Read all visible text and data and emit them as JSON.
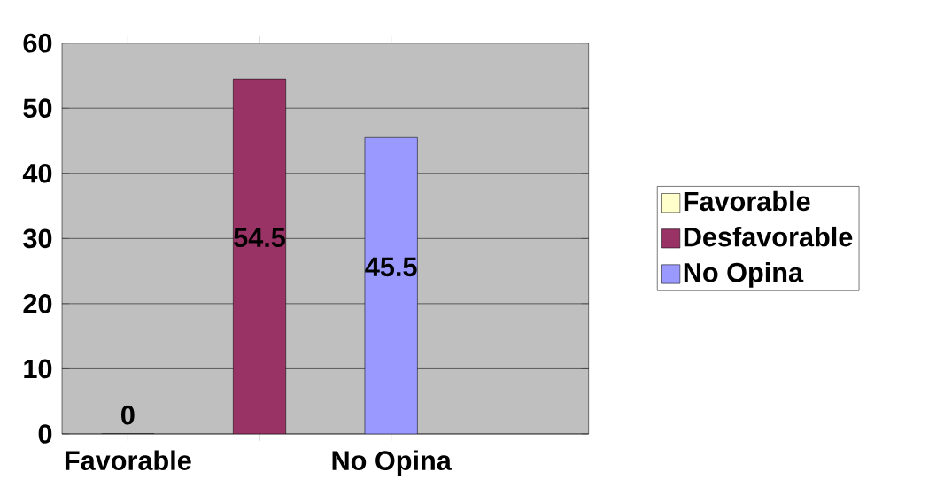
{
  "chart_data": {
    "type": "bar",
    "categories": [
      "Favorable",
      null,
      "No Opina"
    ],
    "series": [
      {
        "name": "Favorable",
        "color": "#ffffcc",
        "values": [
          0,
          null,
          null
        ]
      },
      {
        "name": "Desfavorable",
        "color": "#993366",
        "values": [
          null,
          54.5,
          null
        ]
      },
      {
        "name": "No Opina",
        "color": "#9999ff",
        "values": [
          null,
          null,
          45.5
        ]
      }
    ],
    "ylim": [
      0,
      60
    ],
    "yticks": [
      0,
      10,
      20,
      30,
      40,
      50,
      60
    ],
    "grid": "y",
    "legend": "right",
    "data_labels": true
  }
}
